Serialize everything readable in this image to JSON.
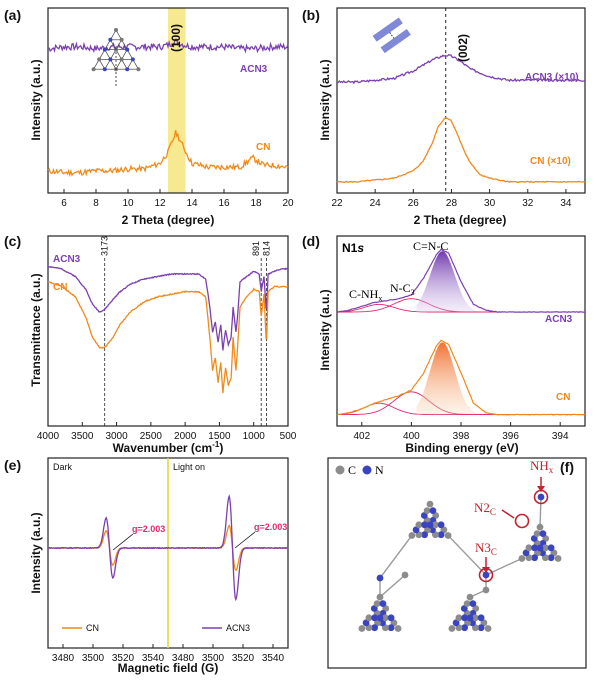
{
  "colors": {
    "acn3": "#7b3fb0",
    "cn": "#f08a1a",
    "highlight": "#f3e26a",
    "carbon": "#8c8c8c",
    "nitrogen": "#3a44c0",
    "red": "#c4222e",
    "pink": "#e02a6f"
  },
  "chart_data": [
    {
      "panel": "(a)",
      "type": "line",
      "xlabel": "2 Theta (degree)",
      "ylabel": "Intensity (a.u.)",
      "xlim": [
        5,
        20
      ],
      "xticks": [
        "6",
        "8",
        "10",
        "12",
        "14",
        "16",
        "18",
        "20"
      ],
      "peak_label": "(100)",
      "highlight_range": [
        12.5,
        13.6
      ],
      "series": [
        {
          "name": "ACN3",
          "x": [
            5,
            6,
            7,
            8,
            9,
            10,
            11,
            12,
            12.5,
            13,
            13.5,
            14,
            15,
            16,
            17,
            18,
            19,
            20
          ],
          "y": [
            0.78,
            0.79,
            0.79,
            0.78,
            0.79,
            0.79,
            0.79,
            0.79,
            0.8,
            0.82,
            0.8,
            0.79,
            0.79,
            0.79,
            0.78,
            0.78,
            0.79,
            0.79
          ]
        },
        {
          "name": "CN",
          "x": [
            5,
            6,
            7,
            8,
            9,
            10,
            11,
            12,
            12.5,
            13,
            13.5,
            14,
            15,
            16,
            17,
            17.8,
            18.5,
            19,
            20
          ],
          "y": [
            0.12,
            0.11,
            0.11,
            0.12,
            0.12,
            0.13,
            0.13,
            0.16,
            0.22,
            0.33,
            0.24,
            0.16,
            0.14,
            0.14,
            0.14,
            0.19,
            0.15,
            0.15,
            0.14
          ]
        }
      ]
    },
    {
      "panel": "(b)",
      "type": "line",
      "xlabel": "2 Theta (degree)",
      "ylabel": "Intensity (a.u.)",
      "xlim": [
        22,
        35
      ],
      "xticks": [
        "22",
        "24",
        "26",
        "28",
        "30",
        "32",
        "34"
      ],
      "peak_label": "(002)",
      "dashed_x": 27.7,
      "series": [
        {
          "name": "ACN3 (×10)",
          "x": [
            22,
            23,
            24,
            25,
            26,
            26.5,
            27,
            27.5,
            27.7,
            28,
            28.5,
            29,
            30,
            31,
            32,
            33,
            34,
            35
          ],
          "y": [
            0.6,
            0.6,
            0.61,
            0.62,
            0.66,
            0.69,
            0.72,
            0.74,
            0.745,
            0.74,
            0.71,
            0.67,
            0.63,
            0.61,
            0.61,
            0.61,
            0.61,
            0.61
          ]
        },
        {
          "name": "CN (×10)",
          "x": [
            22,
            23,
            24,
            25,
            26,
            26.5,
            27,
            27.3,
            27.7,
            28,
            28.3,
            28.7,
            29,
            29.5,
            30,
            31,
            32,
            33,
            34,
            35
          ],
          "y": [
            0.06,
            0.06,
            0.07,
            0.08,
            0.12,
            0.17,
            0.27,
            0.36,
            0.41,
            0.39,
            0.32,
            0.22,
            0.16,
            0.1,
            0.08,
            0.06,
            0.06,
            0.06,
            0.06,
            0.06
          ]
        }
      ]
    },
    {
      "panel": "(c)",
      "type": "line",
      "xlabel": "Wavenumber (cm⁻¹)",
      "ylabel": "Transmittance (a.u.)",
      "xlim": [
        4000,
        500
      ],
      "xticks": [
        "4000",
        "3500",
        "3000",
        "2500",
        "2000",
        "1500",
        "1000",
        "500"
      ],
      "markers": [
        {
          "label": "3173",
          "x": 3173
        },
        {
          "label": "891",
          "x": 891
        },
        {
          "label": "814",
          "x": 814
        }
      ],
      "series": [
        {
          "name": "ACN3",
          "x": [
            4000,
            3800,
            3600,
            3450,
            3350,
            3250,
            3173,
            3050,
            2950,
            2800,
            2600,
            2400,
            2200,
            2000,
            1900,
            1800,
            1700,
            1640,
            1600,
            1560,
            1520,
            1480,
            1450,
            1410,
            1370,
            1330,
            1300,
            1260,
            1230,
            1200,
            1100,
            1000,
            920,
            891,
            850,
            814,
            790,
            700,
            600,
            500
          ],
          "y": [
            0.88,
            0.87,
            0.84,
            0.79,
            0.73,
            0.7,
            0.71,
            0.75,
            0.78,
            0.81,
            0.83,
            0.84,
            0.85,
            0.85,
            0.85,
            0.85,
            0.83,
            0.72,
            0.62,
            0.66,
            0.58,
            0.65,
            0.55,
            0.63,
            0.57,
            0.6,
            0.72,
            0.62,
            0.7,
            0.82,
            0.84,
            0.86,
            0.85,
            0.78,
            0.84,
            0.69,
            0.85,
            0.86,
            0.87,
            0.87
          ]
        },
        {
          "name": "CN",
          "x": [
            4000,
            3800,
            3600,
            3450,
            3350,
            3250,
            3173,
            3050,
            2950,
            2800,
            2600,
            2400,
            2200,
            2000,
            1900,
            1800,
            1700,
            1640,
            1600,
            1560,
            1520,
            1480,
            1450,
            1410,
            1370,
            1330,
            1300,
            1260,
            1230,
            1200,
            1100,
            1000,
            920,
            891,
            850,
            814,
            790,
            700,
            600,
            500
          ],
          "y": [
            0.82,
            0.8,
            0.76,
            0.68,
            0.6,
            0.56,
            0.56,
            0.6,
            0.65,
            0.7,
            0.74,
            0.76,
            0.77,
            0.78,
            0.78,
            0.78,
            0.76,
            0.6,
            0.47,
            0.52,
            0.42,
            0.5,
            0.38,
            0.48,
            0.41,
            0.44,
            0.6,
            0.47,
            0.58,
            0.72,
            0.76,
            0.79,
            0.78,
            0.68,
            0.77,
            0.56,
            0.78,
            0.8,
            0.8,
            0.8
          ]
        }
      ]
    },
    {
      "panel": "(d)",
      "type": "area",
      "title": "N1s",
      "xlabel": "Binding energy (eV)",
      "ylabel": "Intensity (a.u.)",
      "xlim": [
        403,
        393
      ],
      "xticks": [
        "402",
        "400",
        "398",
        "396",
        "394"
      ],
      "annotations": [
        "C=N-C",
        "N-C3",
        "C-NHx"
      ],
      "series": [
        {
          "name": "ACN3",
          "x": [
            403,
            402.5,
            402,
            401.5,
            401,
            400.5,
            400,
            399.5,
            399,
            398.8,
            398.5,
            398,
            397.5,
            397,
            396.5,
            396,
            395,
            394,
            393
          ],
          "y": [
            0.6,
            0.61,
            0.63,
            0.65,
            0.66,
            0.67,
            0.69,
            0.78,
            0.9,
            0.93,
            0.91,
            0.76,
            0.64,
            0.61,
            0.6,
            0.6,
            0.6,
            0.6,
            0.6
          ]
        },
        {
          "name": "CN",
          "x": [
            403,
            402.5,
            402,
            401.5,
            401,
            400.5,
            400,
            399.5,
            399,
            398.8,
            398.5,
            398,
            397.5,
            397,
            396.5,
            396,
            395,
            394,
            393
          ],
          "y": [
            0.06,
            0.07,
            0.09,
            0.12,
            0.14,
            0.16,
            0.19,
            0.28,
            0.42,
            0.45,
            0.43,
            0.28,
            0.12,
            0.07,
            0.06,
            0.06,
            0.06,
            0.06,
            0.06
          ]
        }
      ]
    },
    {
      "panel": "(e)",
      "type": "line",
      "xlabel": "Magnetic field (G)",
      "ylabel": "Intensity (a.u.)",
      "xticks": [
        "3480",
        "3500",
        "3520",
        "3540",
        "3480",
        "3500",
        "3520",
        "3540"
      ],
      "regions": [
        "Dark",
        "Light on"
      ],
      "g_label": "g=2.003",
      "series": [
        {
          "name": "CN"
        },
        {
          "name": "ACN3"
        }
      ]
    }
  ],
  "panels": {
    "a": {
      "label": "(a)",
      "peak": "(100)",
      "acn3": "ACN3",
      "cn": "CN",
      "xlabel": "2 Theta (degree)",
      "ylabel": "Intensity (a.u.)"
    },
    "b": {
      "label": "(b)",
      "peak": "(002)",
      "acn3": "ACN3 (×10)",
      "cn": "CN (×10)",
      "xlabel": "2 Theta (degree)",
      "ylabel": "Intensity (a.u.)"
    },
    "c": {
      "label": "(c)",
      "acn3": "ACN3",
      "cn": "CN",
      "m1": "3173",
      "m2": "891",
      "m3": "814",
      "xlabel": "Wavenumber (cm",
      "xlabel_sup": "-1",
      "xlabel_end": ")",
      "ylabel": "Transmittance (a.u.)"
    },
    "d": {
      "label": "(d)",
      "title": "N1",
      "title_s": "s",
      "cnc": "C=N-C",
      "nc3": "N-C",
      "nc3_sub": "3",
      "cnhx": "C-NH",
      "cnhx_sub": "x",
      "acn3": "ACN3",
      "cn": "CN",
      "xlabel": "Binding energy (eV)",
      "ylabel": "Intensity (a.u.)"
    },
    "e": {
      "label": "(e)",
      "dark": "Dark",
      "light": "Light on",
      "g1": "g=2.003",
      "g2": "g=2.003",
      "cn": "CN",
      "acn3": "ACN3",
      "xlabel": "Magnetic field (G)",
      "ylabel": "Intensity (a.u.)"
    },
    "f": {
      "label": "(f)",
      "c_legend": "C",
      "n_legend": "N",
      "nhx": "NH",
      "nhx_sub": "x",
      "n2c": "N2",
      "n2c_sub": "C",
      "n3c": "N3",
      "n3c_sub": "C"
    }
  }
}
